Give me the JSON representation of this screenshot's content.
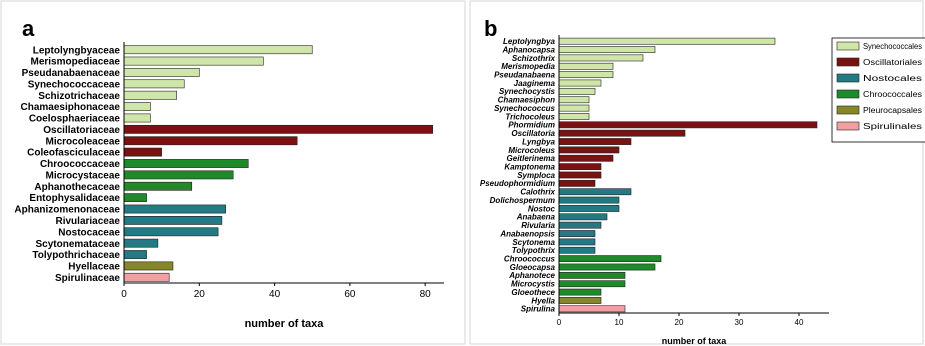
{
  "panels": [
    {
      "letter": "a",
      "chart_data": {
        "type": "bar",
        "orientation": "horizontal",
        "xlabel": "number of taxa",
        "ylabel": "",
        "xlim": [
          0,
          85
        ],
        "xticks": [
          0,
          20,
          40,
          60,
          80
        ],
        "grid": false,
        "legend": null,
        "bars": [
          {
            "label": "Leptolyngbyaceae",
            "value": 50,
            "group": "Synechococcales"
          },
          {
            "label": "Merismopediaceae",
            "value": 37,
            "group": "Synechococcales"
          },
          {
            "label": "Pseudanabaenaceae",
            "value": 20,
            "group": "Synechococcales"
          },
          {
            "label": "Synechococcaceae",
            "value": 16,
            "group": "Synechococcales"
          },
          {
            "label": "Schizotrichaceae",
            "value": 14,
            "group": "Synechococcales"
          },
          {
            "label": "Chamaesiphonaceae",
            "value": 7,
            "group": "Synechococcales"
          },
          {
            "label": "Coelosphaeriaceae",
            "value": 7,
            "group": "Synechococcales"
          },
          {
            "label": "Oscillatoriaceae",
            "value": 82,
            "group": "Oscillatoriales"
          },
          {
            "label": "Microcoleaceae",
            "value": 46,
            "group": "Oscillatoriales"
          },
          {
            "label": "Coleofasciculaceae",
            "value": 10,
            "group": "Oscillatoriales"
          },
          {
            "label": "Chroococcaceae",
            "value": 33,
            "group": "Chroococcales"
          },
          {
            "label": "Microcystaceae",
            "value": 29,
            "group": "Chroococcales"
          },
          {
            "label": "Aphanothecaceae",
            "value": 18,
            "group": "Chroococcales"
          },
          {
            "label": "Entophysalidaceae",
            "value": 6,
            "group": "Chroococcales"
          },
          {
            "label": "Aphanizomenonaceae",
            "value": 27,
            "group": "Nostocales"
          },
          {
            "label": "Rivulariaceae",
            "value": 26,
            "group": "Nostocales"
          },
          {
            "label": "Nostocaceae",
            "value": 25,
            "group": "Nostocales"
          },
          {
            "label": "Scytonemataceae",
            "value": 9,
            "group": "Nostocales"
          },
          {
            "label": "Tolypothrichaceae",
            "value": 6,
            "group": "Nostocales"
          },
          {
            "label": "Hyellaceae",
            "value": 13,
            "group": "Pleurocapsales"
          },
          {
            "label": "Spirulinaceae",
            "value": 12,
            "group": "Spirulinales"
          }
        ]
      }
    },
    {
      "letter": "b",
      "chart_data": {
        "type": "bar",
        "orientation": "horizontal",
        "xlabel": "number of taxa",
        "ylabel": "",
        "xlim": [
          0,
          45
        ],
        "xticks": [
          0,
          10,
          20,
          30,
          40
        ],
        "grid": false,
        "legend": "top-right",
        "bars": [
          {
            "label": "Leptolyngbya",
            "value": 36,
            "group": "Synechococcales"
          },
          {
            "label": "Aphanocapsa",
            "value": 16,
            "group": "Synechococcales"
          },
          {
            "label": "Schizothrix",
            "value": 14,
            "group": "Synechococcales"
          },
          {
            "label": "Merismopedia",
            "value": 9,
            "group": "Synechococcales"
          },
          {
            "label": "Pseudanabaena",
            "value": 9,
            "group": "Synechococcales"
          },
          {
            "label": "Jaaginema",
            "value": 7,
            "group": "Synechococcales"
          },
          {
            "label": "Synechocystis",
            "value": 6,
            "group": "Synechococcales"
          },
          {
            "label": "Chamaesiphon",
            "value": 5,
            "group": "Synechococcales"
          },
          {
            "label": "Synechococcus",
            "value": 5,
            "group": "Synechococcales"
          },
          {
            "label": "Trichocoleus",
            "value": 5,
            "group": "Synechococcales"
          },
          {
            "label": "Phormidium",
            "value": 43,
            "group": "Oscillatoriales"
          },
          {
            "label": "Oscillatoria",
            "value": 21,
            "group": "Oscillatoriales"
          },
          {
            "label": "Lyngbya",
            "value": 12,
            "group": "Oscillatoriales"
          },
          {
            "label": "Microcoleus",
            "value": 10,
            "group": "Oscillatoriales"
          },
          {
            "label": "Geitlerinema",
            "value": 9,
            "group": "Oscillatoriales"
          },
          {
            "label": "Kamptonema",
            "value": 7,
            "group": "Oscillatoriales"
          },
          {
            "label": "Symploca",
            "value": 7,
            "group": "Oscillatoriales"
          },
          {
            "label": "Pseudophormidium",
            "value": 6,
            "group": "Oscillatoriales"
          },
          {
            "label": "Calothrix",
            "value": 12,
            "group": "Nostocales"
          },
          {
            "label": "Dolichospermum",
            "value": 10,
            "group": "Nostocales"
          },
          {
            "label": "Nostoc",
            "value": 10,
            "group": "Nostocales"
          },
          {
            "label": "Anabaena",
            "value": 8,
            "group": "Nostocales"
          },
          {
            "label": "Rivularia",
            "value": 7,
            "group": "Nostocales"
          },
          {
            "label": "Anabaenopsis",
            "value": 6,
            "group": "Nostocales"
          },
          {
            "label": "Scytonema",
            "value": 6,
            "group": "Nostocales"
          },
          {
            "label": "Tolypothrix",
            "value": 6,
            "group": "Nostocales"
          },
          {
            "label": "Chroococcus",
            "value": 17,
            "group": "Chroococcales"
          },
          {
            "label": "Gloeocapsa",
            "value": 16,
            "group": "Chroococcales"
          },
          {
            "label": "Aphanotece",
            "value": 11,
            "group": "Chroococcales"
          },
          {
            "label": "Microcystis",
            "value": 11,
            "group": "Chroococcales"
          },
          {
            "label": "Gloeothece",
            "value": 7,
            "group": "Chroococcales"
          },
          {
            "label": "Hyella",
            "value": 7,
            "group": "Pleurocapsales"
          },
          {
            "label": "Spirulina",
            "value": 11,
            "group": "Spirulinales"
          }
        ]
      }
    }
  ],
  "legend": {
    "entries": [
      "Synechococcales",
      "Oscillatoriales",
      "Nostocales",
      "Chroococcales",
      "Pleurocapsales",
      "Spirulinales"
    ]
  },
  "group_colors": {
    "Synechococcales": "#cfe6a8",
    "Oscillatoriales": "#7a1212",
    "Nostocales": "#237a84",
    "Chroococcales": "#1f8a2a",
    "Pleurocapsales": "#86862a",
    "Spirulinales": "#f0a0a0"
  }
}
